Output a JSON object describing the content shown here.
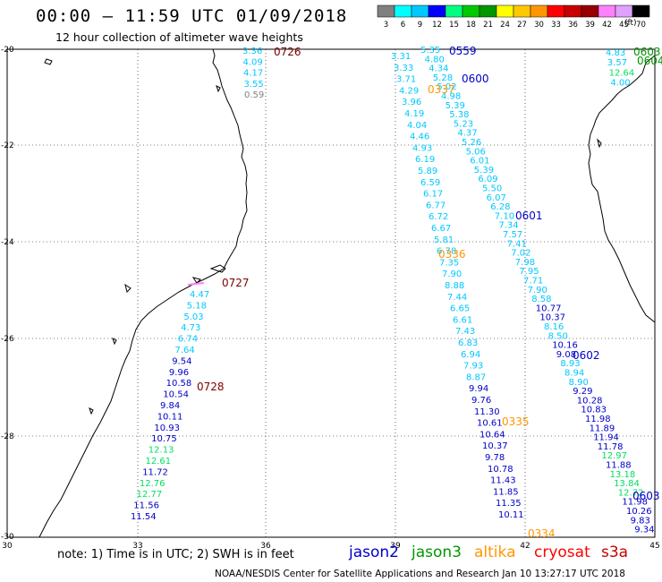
{
  "header": {
    "title": "00:00 – 11:59 UTC 01/09/2018",
    "subtitle": "12 hour collection of altimeter wave heights"
  },
  "colorscale": {
    "unit": "(ft)",
    "bins": [
      {
        "label": "3",
        "color": "#808080"
      },
      {
        "label": "6",
        "color": "#00ffff"
      },
      {
        "label": "9",
        "color": "#00c8ff"
      },
      {
        "label": "12",
        "color": "#0000ff"
      },
      {
        "label": "15",
        "color": "#00ff80"
      },
      {
        "label": "18",
        "color": "#00c800"
      },
      {
        "label": "21",
        "color": "#009600"
      },
      {
        "label": "24",
        "color": "#ffff00"
      },
      {
        "label": "27",
        "color": "#ffc800"
      },
      {
        "label": "30",
        "color": "#ff9600"
      },
      {
        "label": "33",
        "color": "#ff0000"
      },
      {
        "label": "36",
        "color": "#c80000"
      },
      {
        "label": "39",
        "color": "#960000"
      },
      {
        "label": "42",
        "color": "#ff80ff"
      },
      {
        "label": "45",
        "color": "#e0a0ff"
      },
      {
        "label": "70",
        "color": "#000000"
      }
    ]
  },
  "axes": {
    "lon_labels": [
      "30",
      "33",
      "36",
      "39",
      "42",
      "45"
    ],
    "lat_labels": [
      "-20",
      "-22",
      "-24",
      "-26",
      "-28",
      "-30"
    ]
  },
  "tracks": [
    {
      "name": "track-0726",
      "time": "0726",
      "time_color": "#800000",
      "values": [
        {
          "v": "3.36",
          "c": "#00c8ff"
        },
        {
          "v": "4.09",
          "c": "#00c8ff"
        },
        {
          "v": "4.17",
          "c": "#00c8ff"
        },
        {
          "v": "3.55",
          "c": "#00c8ff"
        },
        {
          "v": "0.59",
          "c": "#808080"
        }
      ]
    },
    {
      "name": "track-0727-0728",
      "time": "0727",
      "time2": "0728",
      "time_color": "#800000",
      "values": [
        {
          "v": "4.47",
          "c": "#00c8ff"
        },
        {
          "v": "5.18",
          "c": "#00c8ff"
        },
        {
          "v": "5.03",
          "c": "#00c8ff"
        },
        {
          "v": "4.73",
          "c": "#00c8ff"
        },
        {
          "v": "6.74",
          "c": "#00c8ff"
        },
        {
          "v": "7.64",
          "c": "#00c8ff"
        },
        {
          "v": "9.54",
          "c": "#0000c8"
        },
        {
          "v": "9.96",
          "c": "#0000c8"
        },
        {
          "v": "10.58",
          "c": "#0000c8"
        },
        {
          "v": "10.54",
          "c": "#0000c8"
        },
        {
          "v": "9.84",
          "c": "#0000c8"
        },
        {
          "v": "10.11",
          "c": "#0000c8"
        },
        {
          "v": "10.93",
          "c": "#0000c8"
        },
        {
          "v": "10.75",
          "c": "#0000c8"
        },
        {
          "v": "12.13",
          "c": "#00e060"
        },
        {
          "v": "12.61",
          "c": "#00e060"
        },
        {
          "v": "11.72",
          "c": "#0000c8"
        },
        {
          "v": "12.76",
          "c": "#00e060"
        },
        {
          "v": "12.77",
          "c": "#00e060"
        },
        {
          "v": "11.56",
          "c": "#0000c8"
        },
        {
          "v": "11.54",
          "c": "#0000c8"
        }
      ]
    },
    {
      "name": "track-altika-0337",
      "time": "0337",
      "time2": "0336",
      "time3": "0335",
      "time4": "0334",
      "time_color": "#ff9600",
      "values": [
        {
          "v": "3.31",
          "c": "#00c8ff"
        },
        {
          "v": "3.33",
          "c": "#00c8ff"
        },
        {
          "v": "3.71",
          "c": "#00c8ff"
        },
        {
          "v": "4.29",
          "c": "#00c8ff"
        },
        {
          "v": "3.96",
          "c": "#00c8ff"
        },
        {
          "v": "4.19",
          "c": "#00c8ff"
        },
        {
          "v": "4.04",
          "c": "#00c8ff"
        },
        {
          "v": "4.46",
          "c": "#00c8ff"
        },
        {
          "v": "4.93",
          "c": "#00c8ff"
        },
        {
          "v": "6.19",
          "c": "#00c8ff"
        },
        {
          "v": "5.89",
          "c": "#00c8ff"
        },
        {
          "v": "6.59",
          "c": "#00c8ff"
        },
        {
          "v": "6.17",
          "c": "#00c8ff"
        },
        {
          "v": "6.77",
          "c": "#00c8ff"
        },
        {
          "v": "6.72",
          "c": "#00c8ff"
        },
        {
          "v": "6.67",
          "c": "#00c8ff"
        },
        {
          "v": "5.81",
          "c": "#00c8ff"
        },
        {
          "v": "6.78",
          "c": "#00c8ff"
        },
        {
          "v": "7.35",
          "c": "#00c8ff"
        },
        {
          "v": "7.90",
          "c": "#00c8ff"
        },
        {
          "v": "8.88",
          "c": "#00c8ff"
        },
        {
          "v": "7.44",
          "c": "#00c8ff"
        },
        {
          "v": "6.65",
          "c": "#00c8ff"
        },
        {
          "v": "6.61",
          "c": "#00c8ff"
        },
        {
          "v": "7.43",
          "c": "#00c8ff"
        },
        {
          "v": "6.83",
          "c": "#00c8ff"
        },
        {
          "v": "6.94",
          "c": "#00c8ff"
        },
        {
          "v": "7.93",
          "c": "#00c8ff"
        },
        {
          "v": "8.87",
          "c": "#00c8ff"
        },
        {
          "v": "9.94",
          "c": "#0000c8"
        },
        {
          "v": "9.76",
          "c": "#0000c8"
        },
        {
          "v": "11.30",
          "c": "#0000c8"
        },
        {
          "v": "10.61",
          "c": "#0000c8"
        },
        {
          "v": "10.64",
          "c": "#0000c8"
        },
        {
          "v": "10.37",
          "c": "#0000c8"
        },
        {
          "v": "9.78",
          "c": "#0000c8"
        },
        {
          "v": "10.78",
          "c": "#0000c8"
        },
        {
          "v": "11.43",
          "c": "#0000c8"
        },
        {
          "v": "11.85",
          "c": "#0000c8"
        },
        {
          "v": "11.35",
          "c": "#0000c8"
        },
        {
          "v": "10.11",
          "c": "#0000c8"
        }
      ]
    },
    {
      "name": "track-jason2-0559",
      "time": "0559",
      "time2": "0600",
      "time3": "0601",
      "time4": "0602",
      "time5": "0603",
      "time_color": "#0000c8",
      "values": [
        {
          "v": "5.35",
          "c": "#00c8ff"
        },
        {
          "v": "4.80",
          "c": "#00c8ff"
        },
        {
          "v": "4.34",
          "c": "#00c8ff"
        },
        {
          "v": "5.28",
          "c": "#00c8ff"
        },
        {
          "v": "5.02",
          "c": "#00c8ff"
        },
        {
          "v": "4.98",
          "c": "#00c8ff"
        },
        {
          "v": "5.39",
          "c": "#00c8ff"
        },
        {
          "v": "5.38",
          "c": "#00c8ff"
        },
        {
          "v": "5.23",
          "c": "#00c8ff"
        },
        {
          "v": "4.37",
          "c": "#00c8ff"
        },
        {
          "v": "5.26",
          "c": "#00c8ff"
        },
        {
          "v": "5.06",
          "c": "#00c8ff"
        },
        {
          "v": "6.01",
          "c": "#00c8ff"
        },
        {
          "v": "5.39",
          "c": "#00c8ff"
        },
        {
          "v": "6.09",
          "c": "#00c8ff"
        },
        {
          "v": "5.50",
          "c": "#00c8ff"
        },
        {
          "v": "6.07",
          "c": "#00c8ff"
        },
        {
          "v": "6.28",
          "c": "#00c8ff"
        },
        {
          "v": "7.10",
          "c": "#00c8ff"
        },
        {
          "v": "7.34",
          "c": "#00c8ff"
        },
        {
          "v": "7.57",
          "c": "#00c8ff"
        },
        {
          "v": "7.41",
          "c": "#00c8ff"
        },
        {
          "v": "7.02",
          "c": "#00c8ff"
        },
        {
          "v": "7.98",
          "c": "#00c8ff"
        },
        {
          "v": "7.95",
          "c": "#00c8ff"
        },
        {
          "v": "7.71",
          "c": "#00c8ff"
        },
        {
          "v": "7.90",
          "c": "#00c8ff"
        },
        {
          "v": "8.58",
          "c": "#00c8ff"
        },
        {
          "v": "10.77",
          "c": "#0000c8"
        },
        {
          "v": "10.37",
          "c": "#0000c8"
        },
        {
          "v": "8.16",
          "c": "#00c8ff"
        },
        {
          "v": "8.50",
          "c": "#00c8ff"
        },
        {
          "v": "10.16",
          "c": "#0000c8"
        },
        {
          "v": "9.08",
          "c": "#0000c8"
        },
        {
          "v": "8.93",
          "c": "#00c8ff"
        },
        {
          "v": "8.94",
          "c": "#00c8ff"
        },
        {
          "v": "8.90",
          "c": "#00c8ff"
        },
        {
          "v": "9.29",
          "c": "#0000c8"
        },
        {
          "v": "10.28",
          "c": "#0000c8"
        },
        {
          "v": "10.83",
          "c": "#0000c8"
        },
        {
          "v": "11.98",
          "c": "#0000c8"
        },
        {
          "v": "11.89",
          "c": "#0000c8"
        },
        {
          "v": "11.94",
          "c": "#0000c8"
        },
        {
          "v": "11.78",
          "c": "#0000c8"
        },
        {
          "v": "12.97",
          "c": "#00e060"
        },
        {
          "v": "11.88",
          "c": "#0000c8"
        },
        {
          "v": "13.18",
          "c": "#00e060"
        },
        {
          "v": "13.84",
          "c": "#00e060"
        },
        {
          "v": "12.72",
          "c": "#00e060"
        },
        {
          "v": "11.98",
          "c": "#0000c8"
        },
        {
          "v": "10.26",
          "c": "#0000c8"
        },
        {
          "v": "9.83",
          "c": "#0000c8"
        },
        {
          "v": "9.34",
          "c": "#0000c8"
        }
      ]
    },
    {
      "name": "track-jason3-0603",
      "time": "0603",
      "time2": "0604",
      "time_color": "#009600",
      "values": [
        {
          "v": "4.83",
          "c": "#00c8ff"
        },
        {
          "v": "3.57",
          "c": "#00c8ff"
        },
        {
          "v": "12.64",
          "c": "#00e060"
        },
        {
          "v": "4.00",
          "c": "#00c8ff"
        }
      ]
    }
  ],
  "footer": {
    "note": "note: 1) Time is in UTC; 2) SWH is in feet",
    "missions": [
      {
        "label": "jason2",
        "color": "#0000c8"
      },
      {
        "label": "jason3",
        "color": "#009600"
      },
      {
        "label": "altika",
        "color": "#ff9600"
      },
      {
        "label": "cryosat",
        "color": "#ff0000"
      },
      {
        "label": "s3a",
        "color": "#c80000"
      }
    ],
    "credit": "NOAA/NESDIS Center for Satellite Applications and Research    Jan 10 13:27:17 UTC 2018"
  }
}
